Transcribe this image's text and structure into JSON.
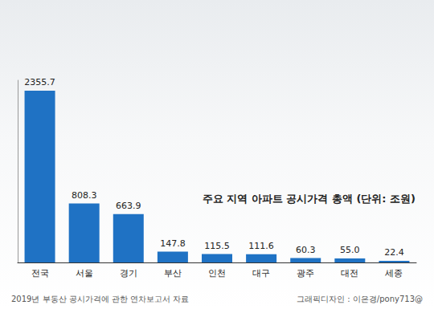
{
  "chart_data": {
    "type": "bar",
    "title": "주요 지역 아파트 공시가격 총액 (단위: 조원)",
    "source": "2019년 부동산 공시가격에 관한 연차보고서 자료",
    "credit": "그래픽디자인 : 이은경/pony713@",
    "categories": [
      "전국",
      "서울",
      "경기",
      "부산",
      "인천",
      "대구",
      "광주",
      "대전",
      "세종"
    ],
    "values": [
      2355.7,
      808.3,
      663.9,
      147.8,
      115.5,
      111.6,
      60.3,
      55.0,
      22.4
    ],
    "value_labels": [
      "2355.7",
      "808.3",
      "663.9",
      "147.8",
      "115.5",
      "111.6",
      "60.3",
      "55.0",
      "22.4"
    ],
    "color": "#1f72c4",
    "ylim": [
      0,
      2500
    ],
    "grid": false,
    "data_labels": true,
    "tick_labels": "x"
  }
}
